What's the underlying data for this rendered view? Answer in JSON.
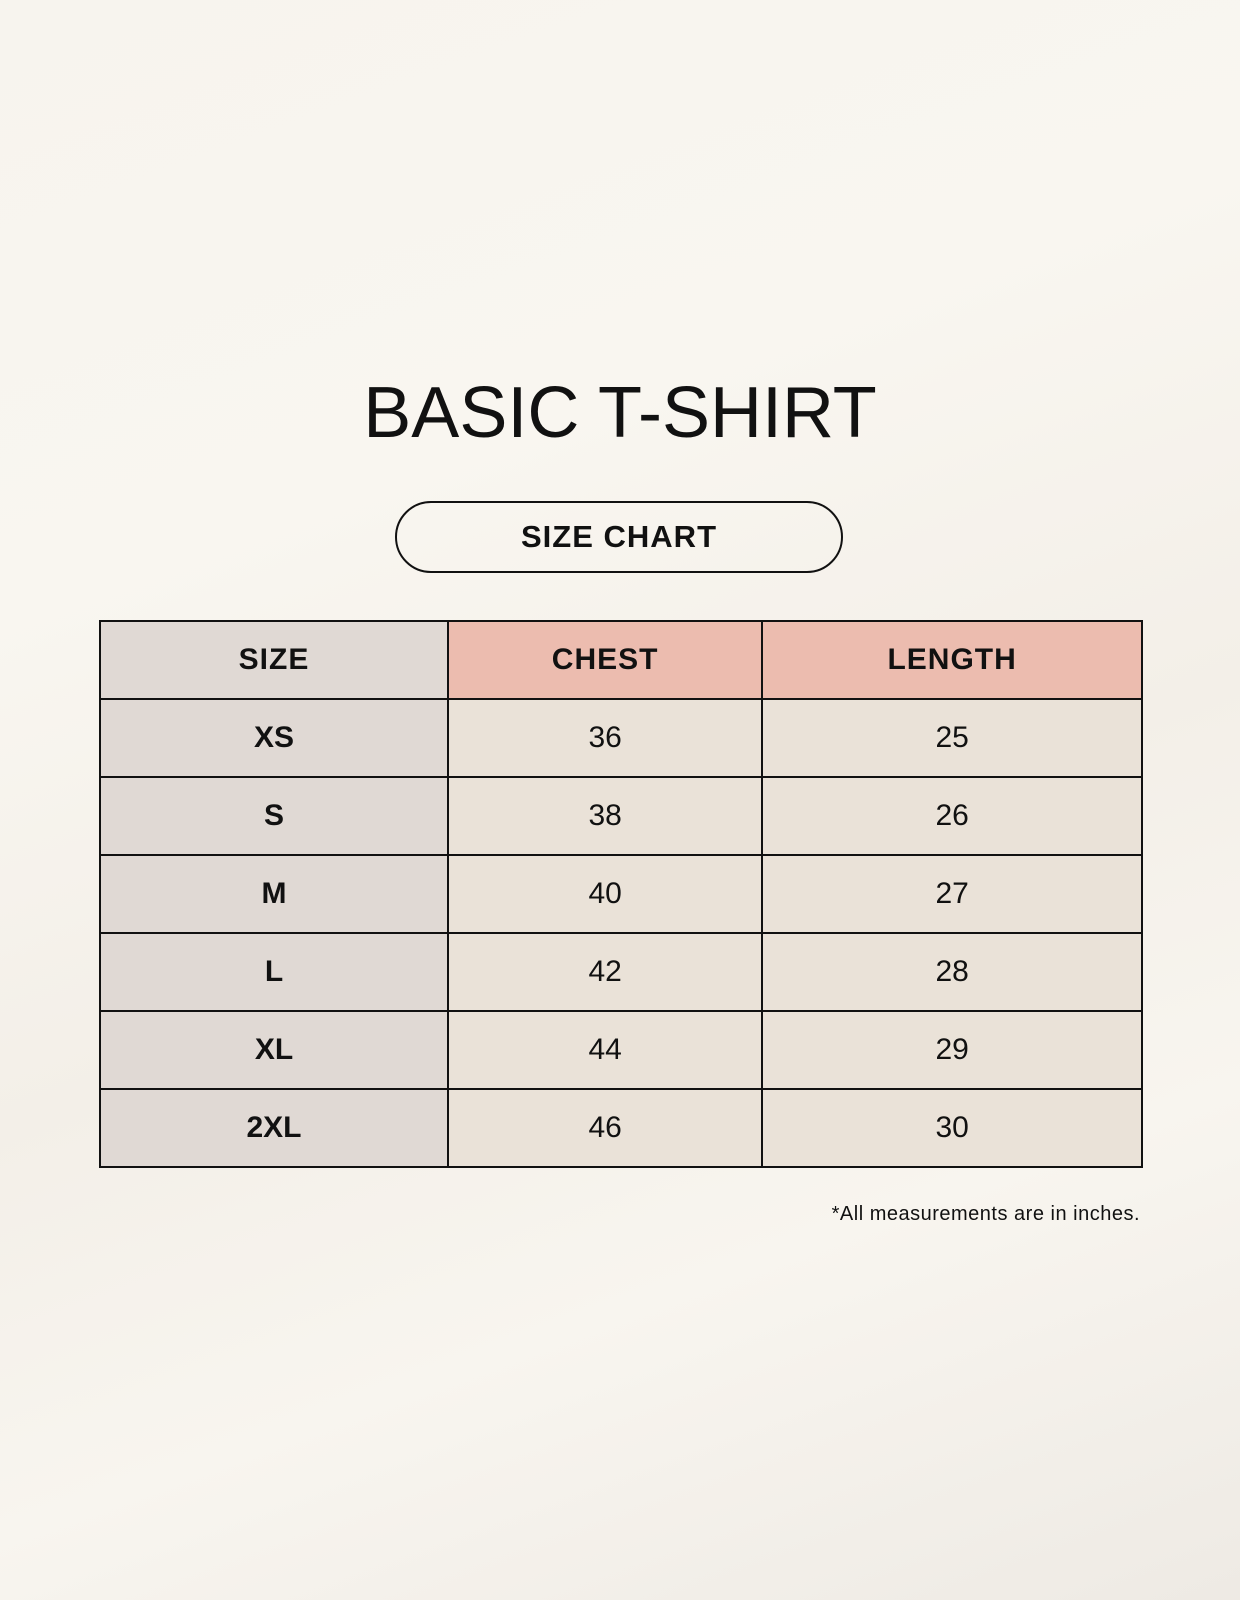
{
  "title": "BASIC T-SHIRT",
  "subtitle": "SIZE CHART",
  "table": {
    "headers": [
      "SIZE",
      "CHEST",
      "LENGTH"
    ],
    "rows": [
      [
        "XS",
        "36",
        "25"
      ],
      [
        "S",
        "38",
        "26"
      ],
      [
        "M",
        "40",
        "27"
      ],
      [
        "L",
        "42",
        "28"
      ],
      [
        "XL",
        "44",
        "29"
      ],
      [
        "2XL",
        "46",
        "30"
      ]
    ]
  },
  "footnote": "*All measurements are in inches.",
  "colors": {
    "size_column": "#e0d9d4",
    "header_accent": "#ecbcaf",
    "value_cells": "#eae2d8"
  }
}
